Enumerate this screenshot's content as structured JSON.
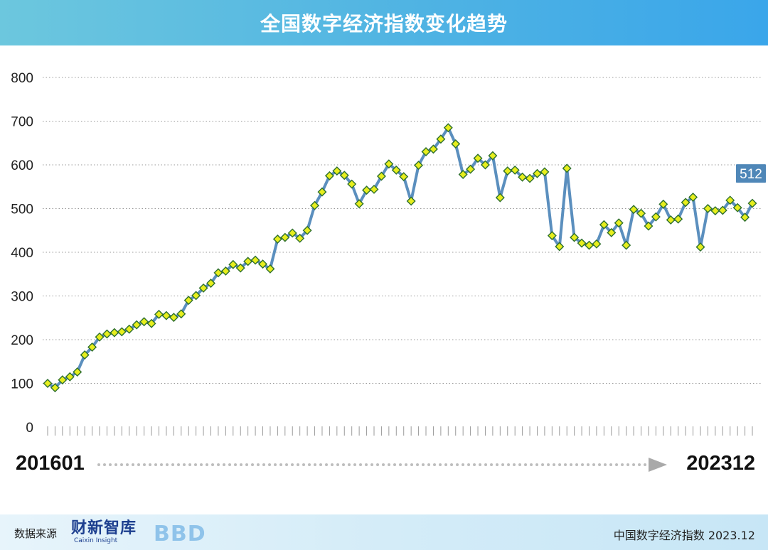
{
  "header": {
    "title": "全国数字经济指数变化趋势"
  },
  "chart_data": {
    "type": "line",
    "title": "全国数字经济指数变化趋势",
    "xlabel": "",
    "ylabel": "",
    "ylim": [
      0,
      800
    ],
    "yticks": [
      0,
      100,
      200,
      300,
      400,
      500,
      600,
      700,
      800
    ],
    "grid": true,
    "x_start": "201601",
    "x_end": "202312",
    "last_value_label": "512",
    "series": [
      {
        "values": [
          100,
          90,
          108,
          115,
          126,
          165,
          183,
          206,
          213,
          216,
          218,
          224,
          234,
          241,
          237,
          258,
          255,
          251,
          259,
          290,
          301,
          318,
          329,
          353,
          357,
          372,
          364,
          379,
          382,
          373,
          362,
          430,
          434,
          444,
          432,
          450,
          507,
          538,
          575,
          586,
          576,
          556,
          511,
          542,
          544,
          574,
          602,
          588,
          573,
          517,
          599,
          630,
          636,
          659,
          685,
          648,
          578,
          590,
          615,
          600,
          621,
          525,
          586,
          588,
          572,
          569,
          580,
          584,
          438,
          413,
          592,
          434,
          421,
          416,
          419,
          463,
          445,
          467,
          416,
          498,
          489,
          460,
          481,
          510,
          474,
          476,
          514,
          526,
          412,
          500,
          495,
          496,
          519,
          502,
          480,
          512
        ]
      }
    ]
  },
  "timeline": {
    "start": "201601",
    "end": "202312"
  },
  "footer": {
    "source_label": "数据来源",
    "logo_name": "财新智库",
    "logo_sub": "Caixin Insight",
    "bbd": "BBD",
    "right_text": "中国数字经济指数 2023.12"
  },
  "colors": {
    "line": "#5b8fbe",
    "marker_fill": "#e7ee1d",
    "marker_stroke": "#2e6f2e",
    "header_bg": "#4fb3e3",
    "value_badge": "#4f87b8"
  }
}
